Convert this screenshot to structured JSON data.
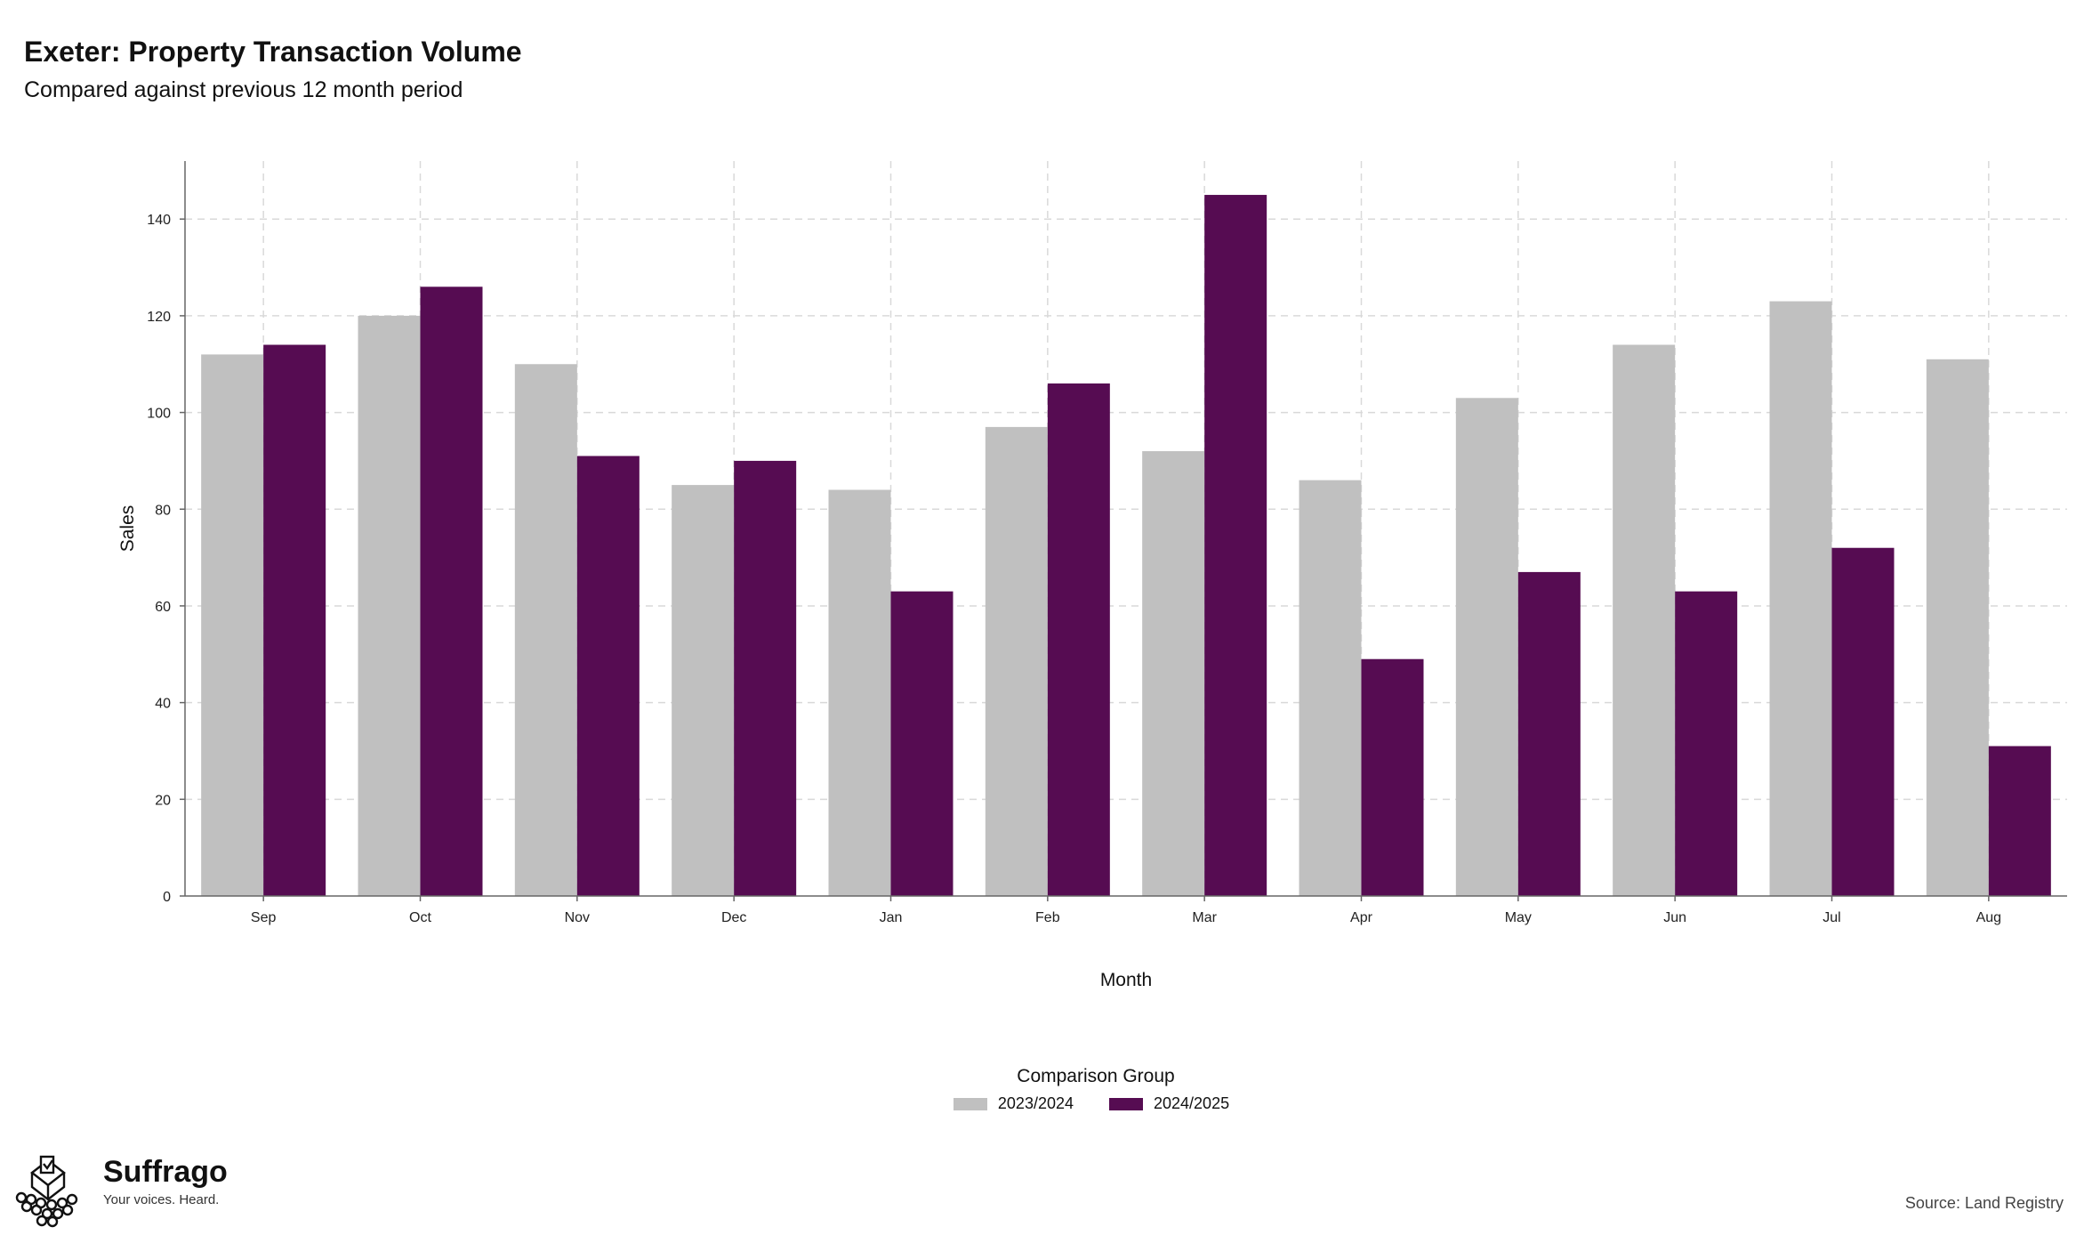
{
  "header": {
    "title": "Exeter: Property Transaction Volume",
    "subtitle": "Compared against previous 12 month period"
  },
  "chart_data": {
    "type": "bar",
    "categories": [
      "Sep",
      "Oct",
      "Nov",
      "Dec",
      "Jan",
      "Feb",
      "Mar",
      "Apr",
      "May",
      "Jun",
      "Jul",
      "Aug"
    ],
    "series": [
      {
        "name": "2023/2024",
        "color": "#c0c0c0",
        "values": [
          112,
          120,
          110,
          85,
          84,
          97,
          92,
          86,
          103,
          114,
          123,
          111
        ]
      },
      {
        "name": "2024/2025",
        "color": "#560c52",
        "values": [
          114,
          126,
          91,
          90,
          63,
          106,
          145,
          49,
          67,
          63,
          72,
          31
        ]
      }
    ],
    "xlabel": "Month",
    "ylabel": "Sales",
    "ylim": [
      0,
      152
    ],
    "yticks": [
      0,
      20,
      40,
      60,
      80,
      100,
      120,
      140
    ],
    "grid": true,
    "legend_title": "Comparison Group",
    "legend_position": "bottom"
  },
  "footer": {
    "brand_name": "Suffrago",
    "brand_tagline": "Your voices. Heard.",
    "source": "Source: Land Registry"
  },
  "icons": {
    "brand_logo": "ballot-box-crowd-logo"
  }
}
